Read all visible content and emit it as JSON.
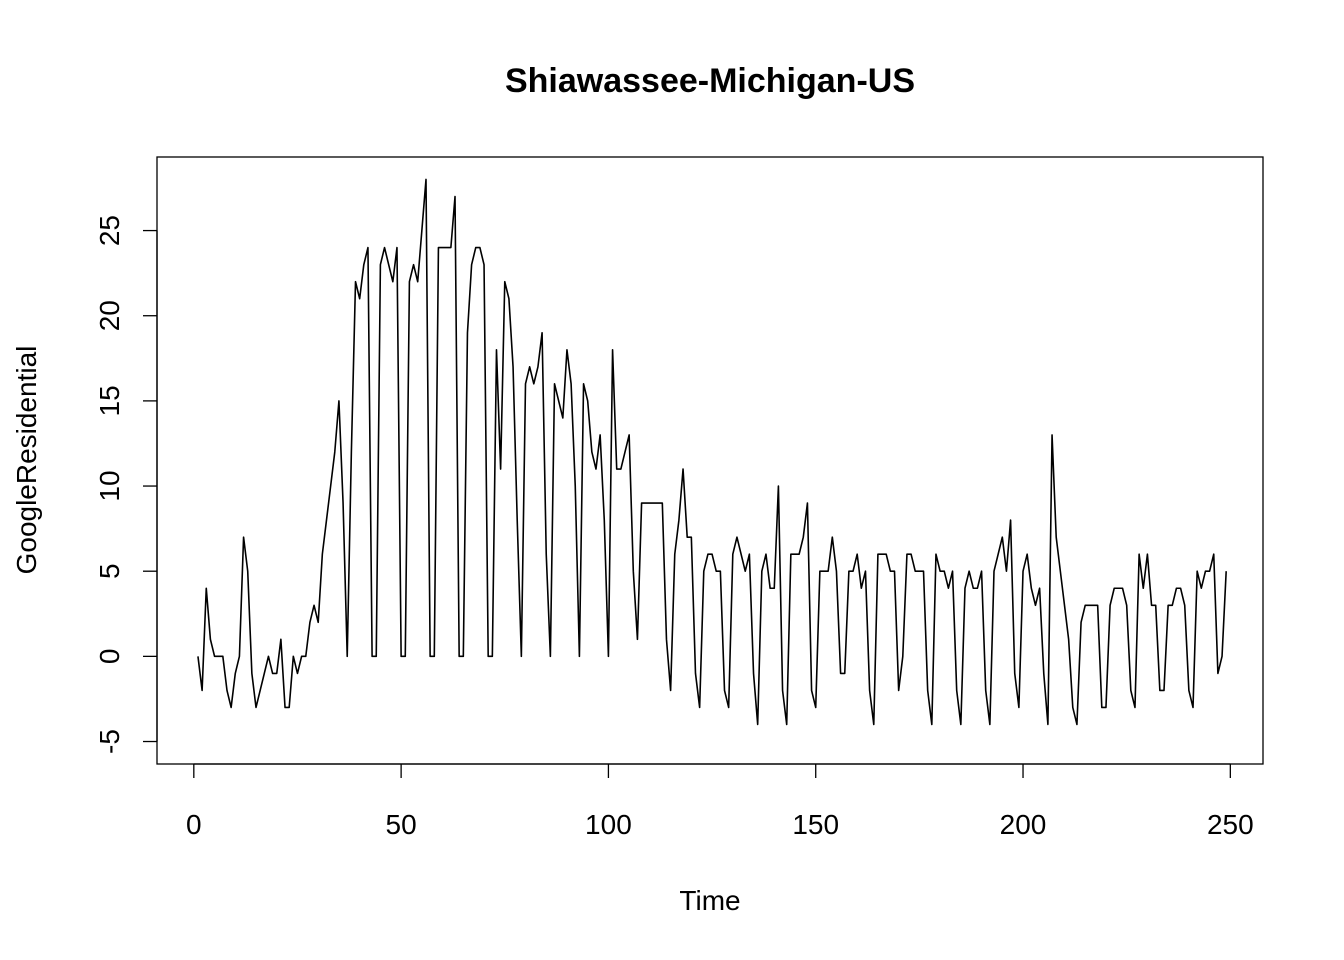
{
  "chart_data": {
    "type": "line",
    "title": "Shiawassee-Michigan-US",
    "xlabel": "Time",
    "ylabel": "GoogleResidential",
    "xlim": [
      1,
      248
    ],
    "ylim": [
      -5,
      28
    ],
    "x_ticks": [
      0,
      50,
      100,
      150,
      200,
      250
    ],
    "y_ticks": [
      -5,
      0,
      5,
      10,
      15,
      20,
      25
    ],
    "grid": false,
    "legend": "none",
    "line_color": "#000000",
    "series": [
      {
        "x_start": 1,
        "x_step": 1,
        "values": [
          0,
          -2,
          4,
          1,
          0,
          0,
          0,
          -2,
          -3,
          -1,
          0,
          7,
          5,
          -1,
          -3,
          -2,
          -1,
          0,
          -1,
          -1,
          1,
          -3,
          -3,
          0,
          -1,
          0,
          0,
          2,
          3,
          2,
          6,
          8,
          10,
          12,
          15,
          9,
          0,
          12,
          22,
          21,
          23,
          24,
          0,
          0,
          23,
          24,
          23,
          22,
          24,
          0,
          0,
          22,
          23,
          22,
          25,
          28,
          0,
          0,
          24,
          24,
          24,
          24,
          27,
          0,
          0,
          19,
          23,
          24,
          24,
          23,
          0,
          0,
          18,
          11,
          22,
          21,
          17,
          8,
          0,
          16,
          17,
          16,
          17,
          19,
          6,
          0,
          16,
          15,
          14,
          18,
          16,
          10,
          0,
          16,
          15,
          12,
          11,
          13,
          8,
          0,
          18,
          11,
          11,
          12,
          13,
          5,
          1,
          9,
          9,
          9,
          9,
          9,
          9,
          1,
          -2,
          6,
          8,
          11,
          7,
          7,
          -1,
          -3,
          5,
          6,
          6,
          5,
          5,
          -2,
          -3,
          6,
          7,
          6,
          5,
          6,
          -1,
          -4,
          5,
          6,
          4,
          4,
          10,
          -2,
          -4,
          6,
          6,
          6,
          7,
          9,
          -2,
          -3,
          5,
          5,
          5,
          7,
          5,
          -1,
          -1,
          5,
          5,
          6,
          4,
          5,
          -2,
          -4,
          6,
          6,
          6,
          5,
          5,
          -2,
          0,
          6,
          6,
          5,
          5,
          5,
          -2,
          -4,
          6,
          5,
          5,
          4,
          5,
          -2,
          -4,
          4,
          5,
          4,
          4,
          5,
          -2,
          -4,
          5,
          6,
          7,
          5,
          8,
          -1,
          -3,
          5,
          6,
          4,
          3,
          4,
          -1,
          -4,
          13,
          7,
          5,
          3,
          1,
          -3,
          -4,
          2,
          3,
          3,
          3,
          3,
          -3,
          -3,
          3,
          4,
          4,
          4,
          3,
          -2,
          -3,
          6,
          4,
          6,
          3,
          3,
          -2,
          -2,
          3,
          3,
          4,
          4,
          3,
          -2,
          -3,
          5,
          4,
          5,
          5,
          6,
          -1,
          0,
          5
        ]
      }
    ]
  }
}
